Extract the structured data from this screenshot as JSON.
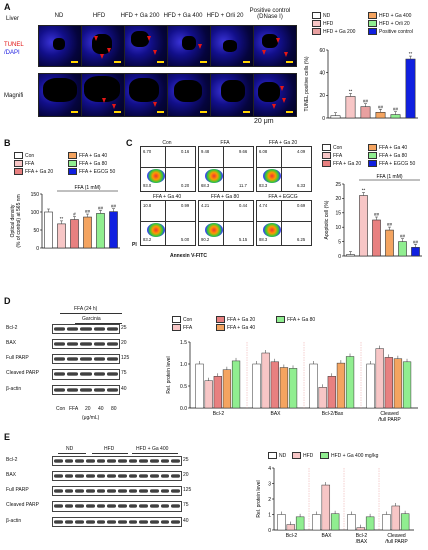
{
  "panelA": {
    "letter": "A",
    "tissue": "Liver",
    "stain1": "TUNEL",
    "stain2": "/DAPI",
    "row2": "Magnifi",
    "columns": [
      "ND",
      "HFD",
      "HFD + Ga 200",
      "HFD + Ga 400",
      "HFD + Orli 20",
      "Positive control\n(DNase I)"
    ],
    "scalebar": "20 μm",
    "legend": [
      "ND",
      "HFD",
      "HFD + Ga 200",
      "HFD + Ga 400",
      "HFD + Orli 20",
      "Positive control"
    ],
    "legend_colors": [
      "#ffffff",
      "#f7c6c6",
      "#e8a0a0",
      "#f4a460",
      "#90ee90",
      "#1020e0"
    ]
  },
  "panelB": {
    "letter": "B",
    "legend": [
      "Con",
      "FFA",
      "FFA + Ga 20",
      "FFA + Ga 40",
      "FFA + Ga 80",
      "FFA + EGCG 50"
    ],
    "legend_colors": [
      "#ffffff",
      "#f7c6c6",
      "#e88080",
      "#f4a460",
      "#90ee90",
      "#1020e0"
    ],
    "bracket": "FFA (1 mM)"
  },
  "panelC": {
    "letter": "C",
    "ylabel_axis": "PI",
    "xlabel_axis": "Annexin V-FITC",
    "plots": [
      {
        "title": "Con",
        "q": [
          "6.70",
          "0.16",
          "93.0",
          "0.20"
        ]
      },
      {
        "title": "FFA",
        "q": [
          "9.48",
          "9.66",
          "68.3",
          "11.7"
        ]
      },
      {
        "title": "FFA + Ga 20",
        "q": [
          "6.08",
          "4.09",
          "83.3",
          "6.33"
        ]
      },
      {
        "title": "FFA + Ga 40",
        "q": [
          "10.8",
          "0.99",
          "83.2",
          "5.00"
        ]
      },
      {
        "title": "FFA + Ga 80",
        "q": [
          "4.21",
          "0.44",
          "90.2",
          "5.15"
        ]
      },
      {
        "title": "FFA + EGCG",
        "q": [
          "4.74",
          "0.69",
          "88.3",
          "6.25"
        ]
      }
    ],
    "legend": [
      "Con",
      "FFA",
      "FFA + Ga 20",
      "FFA + Ga 40",
      "FFA + Ga 80",
      "FFA + EGCG 50"
    ],
    "legend_colors": [
      "#ffffff",
      "#f7c6c6",
      "#e88080",
      "#f4a460",
      "#90ee90",
      "#1020e0"
    ],
    "bracket": "FFA (1 mM)"
  },
  "panelD": {
    "letter": "D",
    "header": "FFA (24 h)",
    "garcinia": "Garcinia",
    "proteins": [
      "Bcl-2",
      "BAX",
      "Full PARP",
      "Cleaved PARP",
      "β-actin"
    ],
    "mw": [
      "25",
      "20",
      "125",
      "75",
      "40"
    ],
    "lanes": [
      "Con",
      "FFA",
      "20",
      "40",
      "80"
    ],
    "unit": "(μg/mL)",
    "legend": [
      "Con",
      "FFA",
      "FFA + Ga 20",
      "FFA + Ga 40",
      "FFA + Ga 80"
    ],
    "legend_colors": [
      "#ffffff",
      "#f7c6c6",
      "#e88080",
      "#f4a460",
      "#90ee90"
    ]
  },
  "panelE": {
    "letter": "E",
    "groups": [
      "ND",
      "HFD",
      "HFD + Ga 400"
    ],
    "proteins": [
      "Bcl-2",
      "BAX",
      "Full PARP",
      "Cleaved PARP",
      "β-actin"
    ],
    "mw": [
      "25",
      "20",
      "125",
      "75",
      "40"
    ],
    "legend": [
      "ND",
      "HFD",
      "HFD + Ga 400 mg/kg"
    ],
    "legend_colors": [
      "#ffffff",
      "#f7c6c6",
      "#90ee90"
    ]
  },
  "chart_data": [
    {
      "type": "bar",
      "panel": "A",
      "ylabel": "TUNEL positive cells (%)",
      "ylim": [
        0,
        60
      ],
      "yticks": [
        0,
        20,
        40,
        60
      ],
      "series": [
        {
          "name": "ND",
          "values": [
            2
          ]
        },
        {
          "name": "HFD",
          "values": [
            19
          ]
        },
        {
          "name": "HFD + Ga 200",
          "values": [
            10
          ]
        },
        {
          "name": "HFD + Ga 400",
          "values": [
            5
          ]
        },
        {
          "name": "HFD + Orli 20",
          "values": [
            3
          ]
        },
        {
          "name": "Positive control",
          "values": [
            52
          ]
        }
      ],
      "annotations": [
        "**",
        "##",
        "##",
        "##",
        "**"
      ]
    },
    {
      "type": "bar",
      "panel": "B",
      "ylabel": "Optical density\n(% of control) at 565 nm",
      "ylim": [
        0,
        150
      ],
      "yticks": [
        0,
        50,
        100,
        150
      ],
      "series": [
        {
          "name": "Con",
          "values": [
            100
          ]
        },
        {
          "name": "FFA",
          "values": [
            67
          ]
        },
        {
          "name": "FFA + Ga 20",
          "values": [
            79
          ]
        },
        {
          "name": "FFA + Ga 40",
          "values": [
            86
          ]
        },
        {
          "name": "FFA + Ga 80",
          "values": [
            96
          ]
        },
        {
          "name": "FFA + EGCG 50",
          "values": [
            101
          ]
        }
      ],
      "annotations": [
        "**",
        "#",
        "##",
        "##",
        "##"
      ]
    },
    {
      "type": "bar",
      "panel": "C",
      "ylabel": "Apoptotic cell (%)",
      "ylim": [
        0,
        25
      ],
      "yticks": [
        0,
        5,
        10,
        15,
        20,
        25
      ],
      "series": [
        {
          "name": "Con",
          "values": [
            0.5
          ]
        },
        {
          "name": "FFA",
          "values": [
            21
          ]
        },
        {
          "name": "FFA + Ga 20",
          "values": [
            12.5
          ]
        },
        {
          "name": "FFA + Ga 40",
          "values": [
            9
          ]
        },
        {
          "name": "FFA + Ga 80",
          "values": [
            5
          ]
        },
        {
          "name": "FFA + EGCG 50",
          "values": [
            3
          ]
        }
      ],
      "annotations": [
        "**",
        "##",
        "##",
        "##",
        "##"
      ]
    },
    {
      "type": "bar",
      "panel": "D",
      "ylabel": "Rel. protein level",
      "ylim": [
        0,
        1.5
      ],
      "yticks": [
        0.0,
        0.5,
        1.0,
        1.5
      ],
      "categories": [
        "Bcl-2",
        "BAX",
        "Bcl-2/Bax",
        "Cleaved\n/full PARP"
      ],
      "series": [
        {
          "name": "Con",
          "values": [
            1.0,
            1.0,
            1.0,
            1.0
          ]
        },
        {
          "name": "FFA",
          "values": [
            0.62,
            1.25,
            0.47,
            1.35
          ]
        },
        {
          "name": "FFA + Ga 20",
          "values": [
            0.72,
            1.05,
            0.72,
            1.15
          ]
        },
        {
          "name": "FFA + Ga 40",
          "values": [
            0.87,
            0.92,
            1.02,
            1.12
          ]
        },
        {
          "name": "FFA + Ga 80",
          "values": [
            1.07,
            0.9,
            1.17,
            1.05
          ]
        }
      ]
    },
    {
      "type": "bar",
      "panel": "E",
      "ylabel": "Rel. protein level",
      "ylim": [
        0,
        4
      ],
      "yticks": [
        0,
        1,
        2,
        3,
        4
      ],
      "categories": [
        "Bcl-2",
        "BAX",
        "Bcl-2\n/BAX",
        "Cleaved\n/full PARP"
      ],
      "series": [
        {
          "name": "ND",
          "values": [
            1.0,
            1.0,
            1.0,
            1.0
          ]
        },
        {
          "name": "HFD",
          "values": [
            0.35,
            2.9,
            0.15,
            1.55
          ]
        },
        {
          "name": "HFD + Ga 400 mg/kg",
          "values": [
            0.85,
            1.05,
            0.85,
            1.05
          ]
        }
      ]
    }
  ]
}
